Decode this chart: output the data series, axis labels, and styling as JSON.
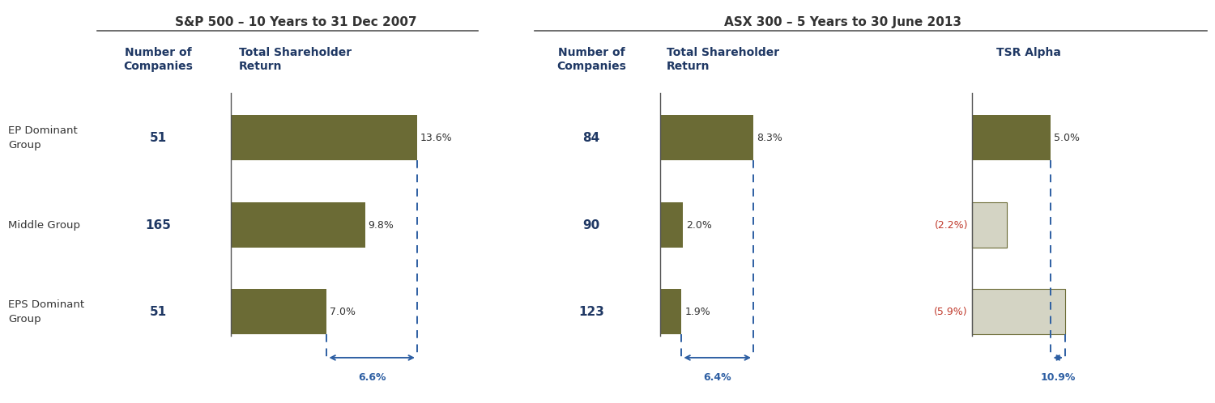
{
  "sp500_title": "S&P 500 – 10 Years to 31 Dec 2007",
  "asx300_title": "ASX 300 – 5 Years to 30 June 2013",
  "row_labels": [
    "EP Dominant\nGroup",
    "Middle Group",
    "EPS Dominant\nGroup"
  ],
  "sp500_companies": [
    "51",
    "165",
    "51"
  ],
  "sp500_tsr": [
    13.6,
    9.8,
    7.0
  ],
  "sp500_tsr_labels": [
    "13.6%",
    "9.8%",
    "7.0%"
  ],
  "sp500_spread": "6.6%",
  "asx300_companies": [
    "84",
    "90",
    "123"
  ],
  "asx300_tsr": [
    8.3,
    2.0,
    1.9
  ],
  "asx300_tsr_labels": [
    "8.3%",
    "2.0%",
    "1.9%"
  ],
  "asx300_spread": "6.4%",
  "asx300_alpha": [
    5.0,
    -2.2,
    -5.9
  ],
  "asx300_alpha_labels": [
    "5.0%",
    "(2.2%)",
    "(5.9%)"
  ],
  "asx300_alpha_spread": "10.9%",
  "bar_color_dark": "#6b6b35",
  "bar_color_light": "#d4d4c4",
  "header_color": "#1f3864",
  "text_color_black": "#333333",
  "text_color_red": "#c0392b",
  "dashed_line_color": "#2e5fa3",
  "separator_color": "#555555",
  "background_color": "#ffffff",
  "title_fontsize": 11,
  "header_fontsize": 10,
  "label_fontsize": 9,
  "row_label_fontsize": 9.5,
  "number_fontsize": 11
}
